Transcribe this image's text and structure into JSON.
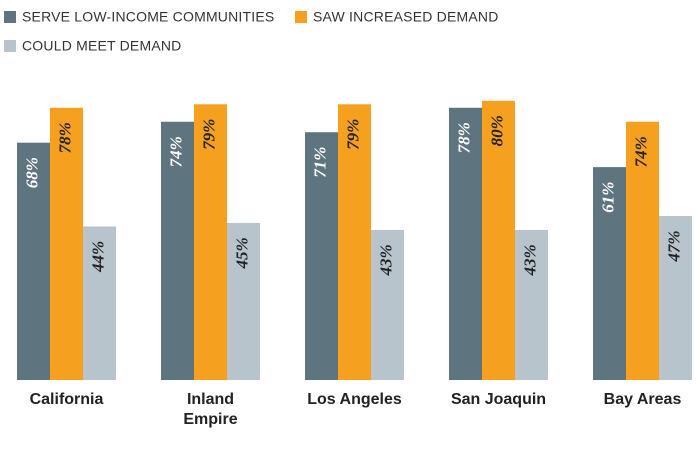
{
  "chart_data": {
    "type": "bar",
    "categories": [
      "California",
      "Inland Empire",
      "Los Angeles",
      "San Joaquin",
      "Bay Areas"
    ],
    "series": [
      {
        "name": "SERVE LOW-INCOME COMMUNITIES",
        "color": "#5e7580",
        "values": [
          68,
          74,
          71,
          78,
          61
        ],
        "value_labels": [
          "68%",
          "74%",
          "71%",
          "78%",
          "61%"
        ]
      },
      {
        "name": "SAW INCREASED DEMAND",
        "color": "#f5a01f",
        "values": [
          78,
          79,
          79,
          80,
          74
        ],
        "value_labels": [
          "78%",
          "79%",
          "79%",
          "80%",
          "74%"
        ]
      },
      {
        "name": "COULD MEET DEMAND",
        "color": "#b8c4cb",
        "values": [
          44,
          45,
          43,
          43,
          47
        ],
        "value_labels": [
          "44%",
          "45%",
          "43%",
          "43%",
          "47%"
        ]
      }
    ]
  }
}
